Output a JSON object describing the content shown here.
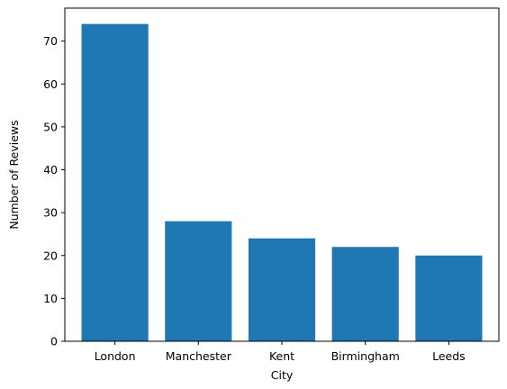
{
  "chart_data": {
    "type": "bar",
    "categories": [
      " London",
      " Manchester",
      " Kent",
      " Birmingham",
      " Leeds"
    ],
    "values": [
      74,
      28,
      24,
      22,
      20
    ],
    "title": "",
    "xlabel": "City",
    "ylabel": "Number of Reviews",
    "ylim": [
      0,
      77.7
    ],
    "yticks": [
      0,
      10,
      20,
      30,
      40,
      50,
      60,
      70
    ],
    "grid": false,
    "bar_color": "#1f77b4"
  }
}
